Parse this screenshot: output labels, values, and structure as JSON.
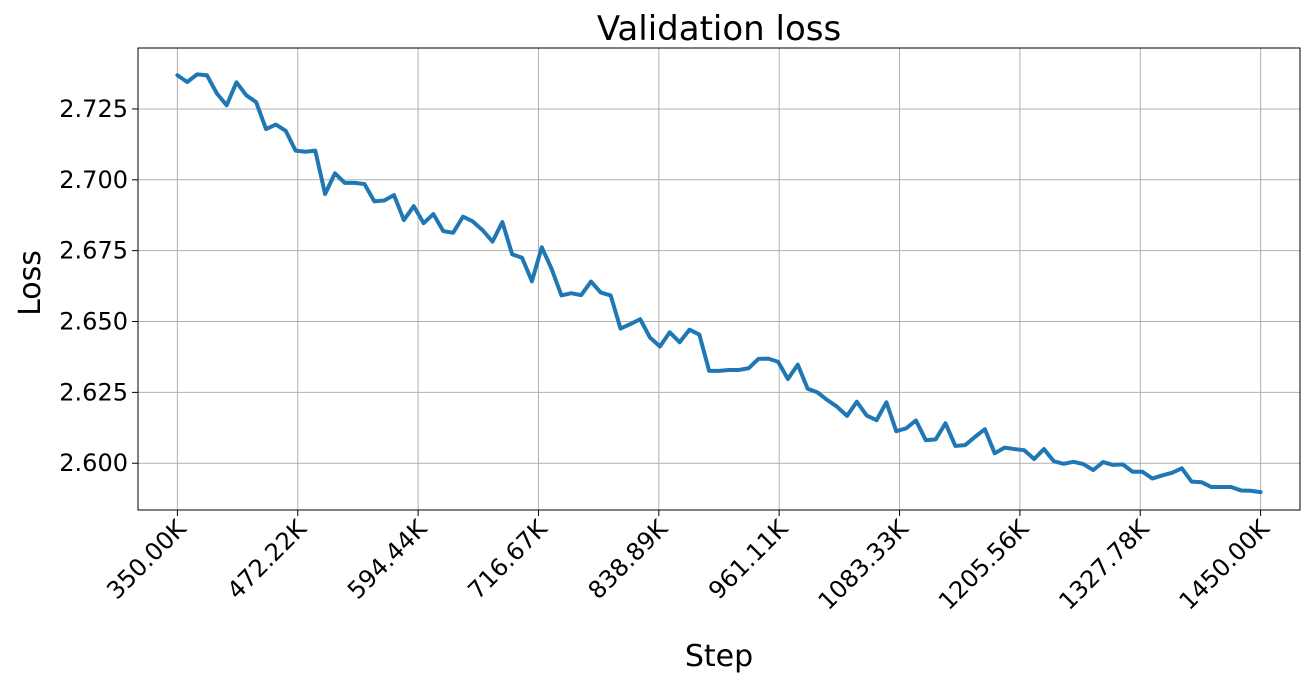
{
  "chart_data": {
    "type": "line",
    "title": "Validation loss",
    "xlabel": "Step",
    "ylabel": "Loss",
    "xlim": [
      310000,
      1490000
    ],
    "ylim": [
      2.5835,
      2.7465
    ],
    "grid": true,
    "x_ticks": [
      350000,
      472222,
      594444,
      716667,
      838889,
      961111,
      1083333,
      1205556,
      1327778,
      1450000
    ],
    "x_tick_labels": [
      "350.00K",
      "472.22K",
      "594.44K",
      "716.67K",
      "838.89K",
      "961.11K",
      "1083.33K",
      "1205.56K",
      "1327.78K",
      "1450.00K"
    ],
    "y_ticks": [
      2.6,
      2.625,
      2.65,
      2.675,
      2.7,
      2.725
    ],
    "y_tick_labels": [
      "2.600",
      "2.625",
      "2.650",
      "2.675",
      "2.700",
      "2.725"
    ],
    "series": [
      {
        "name": "",
        "color": "#1f77b4",
        "x": [
          350000,
          360000,
          370000,
          380000,
          390000,
          400000,
          410000,
          420000,
          430000,
          440000,
          450000,
          460000,
          470000,
          480000,
          490000,
          500000,
          510000,
          520000,
          530000,
          540000,
          550000,
          560000,
          570000,
          580000,
          590000,
          600000,
          610000,
          620000,
          630000,
          640000,
          650000,
          660000,
          670000,
          680000,
          690000,
          700000,
          710000,
          720000,
          730000,
          740000,
          750000,
          760000,
          770000,
          780000,
          790000,
          800000,
          810000,
          820000,
          830000,
          840000,
          850000,
          860000,
          870000,
          880000,
          890000,
          900000,
          910000,
          920000,
          930000,
          940000,
          950000,
          960000,
          970000,
          980000,
          990000,
          1000000,
          1010000,
          1020000,
          1030000,
          1040000,
          1050000,
          1060000,
          1070000,
          1080000,
          1090000,
          1100000,
          1110000,
          1120000,
          1130000,
          1140000,
          1150000,
          1160000,
          1170000,
          1180000,
          1190000,
          1200000,
          1210000,
          1220000,
          1230000,
          1240000,
          1250000,
          1260000,
          1270000,
          1280000,
          1290000,
          1300000,
          1310000,
          1320000,
          1330000,
          1340000,
          1350000,
          1360000,
          1370000,
          1380000,
          1390000,
          1400000,
          1410000,
          1420000,
          1430000,
          1440000,
          1450000
        ],
        "y": [
          2.7369,
          2.7345,
          2.7372,
          2.7369,
          2.7305,
          2.7263,
          2.7344,
          2.7298,
          2.7274,
          2.7179,
          2.7195,
          2.7173,
          2.7103,
          2.7099,
          2.7103,
          2.695,
          2.7023,
          2.6989,
          2.6989,
          2.6985,
          2.6924,
          2.6927,
          2.6946,
          2.6858,
          2.6907,
          2.6847,
          2.6879,
          2.6819,
          2.6813,
          2.687,
          2.6853,
          2.6822,
          2.6782,
          2.6851,
          2.6737,
          2.6725,
          2.6642,
          2.6762,
          2.6686,
          2.6592,
          2.66,
          2.6593,
          2.6641,
          2.6602,
          2.6592,
          2.6475,
          2.6491,
          2.6508,
          2.6443,
          2.6412,
          2.6462,
          2.6427,
          2.6471,
          2.6454,
          2.6326,
          2.6326,
          2.6329,
          2.6329,
          2.6335,
          2.6368,
          2.6369,
          2.6358,
          2.6297,
          2.6348,
          2.6263,
          2.625,
          2.6223,
          2.6199,
          2.6167,
          2.6217,
          2.6168,
          2.6152,
          2.6215,
          2.6113,
          2.6123,
          2.6151,
          2.6081,
          2.6084,
          2.6141,
          2.6061,
          2.6064,
          2.6093,
          2.612,
          2.6035,
          2.6055,
          2.605,
          2.6046,
          2.6015,
          2.605,
          2.6007,
          2.5998,
          2.6005,
          2.5997,
          2.5976,
          2.6004,
          2.5994,
          2.5996,
          2.597,
          2.597,
          2.5946,
          2.5957,
          2.5966,
          2.5982,
          2.5935,
          2.5933,
          2.5916,
          2.5916,
          2.5916,
          2.5904,
          2.5903,
          2.5898
        ]
      }
    ]
  }
}
